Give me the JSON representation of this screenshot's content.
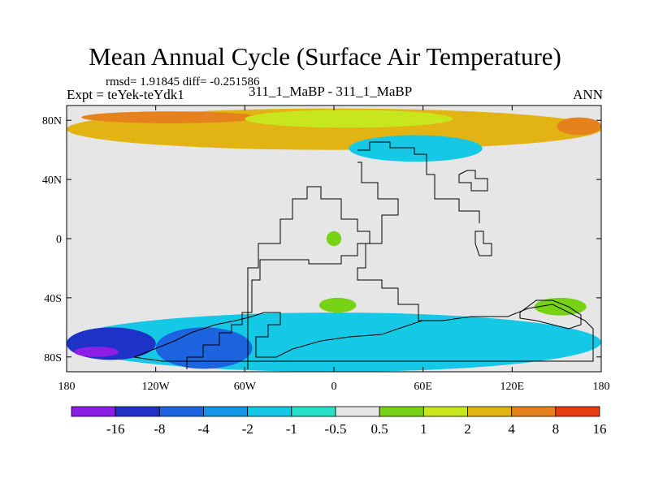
{
  "header": {
    "title": "Mean Annual Cycle (Surface Air Temperature)",
    "stats": "rmsd= 1.91845 diff= -0.251586",
    "expt": "Expt = teYek-teYdk1",
    "subtitle": "311_1_MaBP - 311_1_MaBP",
    "period": "ANN"
  },
  "chart_data": {
    "type": "heatmap",
    "title": "Mean Annual Cycle (Surface Air Temperature)",
    "subtitle": "311_1_MaBP - 311_1_MaBP",
    "variable": "Surface Air Temperature difference",
    "xlim": [
      -180,
      180
    ],
    "ylim": [
      -90,
      90
    ],
    "x_ticks": [
      {
        "value": -180,
        "label": "180"
      },
      {
        "value": -120,
        "label": "120W"
      },
      {
        "value": -60,
        "label": "60W"
      },
      {
        "value": 0,
        "label": "0"
      },
      {
        "value": 60,
        "label": "60E"
      },
      {
        "value": 120,
        "label": "120E"
      },
      {
        "value": 180,
        "label": "180"
      }
    ],
    "y_ticks": [
      {
        "value": 80,
        "label": "80N"
      },
      {
        "value": 40,
        "label": "40N"
      },
      {
        "value": 0,
        "label": "0"
      },
      {
        "value": -40,
        "label": "40S"
      },
      {
        "value": -80,
        "label": "80S"
      }
    ],
    "contour_levels": [
      -16,
      -8,
      -4,
      -2,
      -1,
      -0.5,
      0.5,
      1,
      2,
      4,
      8,
      16
    ],
    "colorbar_labels": [
      "-16",
      "-8",
      "-4",
      "-2",
      "-1",
      "-0.5",
      "0.5",
      "1",
      "2",
      "4",
      "8",
      "16"
    ],
    "colorbar_colors": [
      "#8c1ee6",
      "#1e32c8",
      "#1e64e1",
      "#1496e6",
      "#14c8e6",
      "#28e1c8",
      "#e6e6e6",
      "#78d214",
      "#c8e61e",
      "#e1b414",
      "#e6821e",
      "#e63c14"
    ],
    "regions": [
      {
        "name": "arctic",
        "color": "#e1b414",
        "lon": [
          -180,
          180
        ],
        "lat": [
          60,
          88
        ]
      },
      {
        "name": "arctic-strong-warming-east",
        "color": "#e6821e",
        "lon": [
          150,
          180
        ],
        "lat": [
          70,
          82
        ]
      },
      {
        "name": "arctic-warming-west",
        "color": "#e6821e",
        "lon": [
          -170,
          -50
        ],
        "lat": [
          78,
          86
        ]
      },
      {
        "name": "arctic-mild-band",
        "color": "#c8e61e",
        "lon": [
          -60,
          80
        ],
        "lat": [
          75,
          87
        ]
      },
      {
        "name": "north-atlantic-cooling",
        "color": "#14c8e6",
        "lon": [
          10,
          100
        ],
        "lat": [
          52,
          70
        ]
      },
      {
        "name": "central-atlantic-warming",
        "color": "#78d214",
        "lon": [
          -5,
          5
        ],
        "lat": [
          -5,
          5
        ]
      },
      {
        "name": "south-atlantic-warming",
        "color": "#78d214",
        "lon": [
          -10,
          15
        ],
        "lat": [
          -50,
          -40
        ]
      },
      {
        "name": "indian-ocean-warming",
        "color": "#78d214",
        "lon": [
          135,
          170
        ],
        "lat": [
          -52,
          -40
        ]
      },
      {
        "name": "southern-ocean-cooling",
        "color": "#14c8e6",
        "lon": [
          -180,
          180
        ],
        "lat": [
          -90,
          -50
        ]
      },
      {
        "name": "antarctic-strong-cooling",
        "color": "#1e32c8",
        "lon": [
          -180,
          -120
        ],
        "lat": [
          -82,
          -60
        ]
      },
      {
        "name": "antarctic-extreme-cooling",
        "color": "#8c1ee6",
        "lon": [
          -175,
          -145
        ],
        "lat": [
          -80,
          -73
        ]
      },
      {
        "name": "weddell-cooling",
        "color": "#1e64e1",
        "lon": [
          -120,
          -55
        ],
        "lat": [
          -88,
          -60
        ]
      }
    ]
  }
}
